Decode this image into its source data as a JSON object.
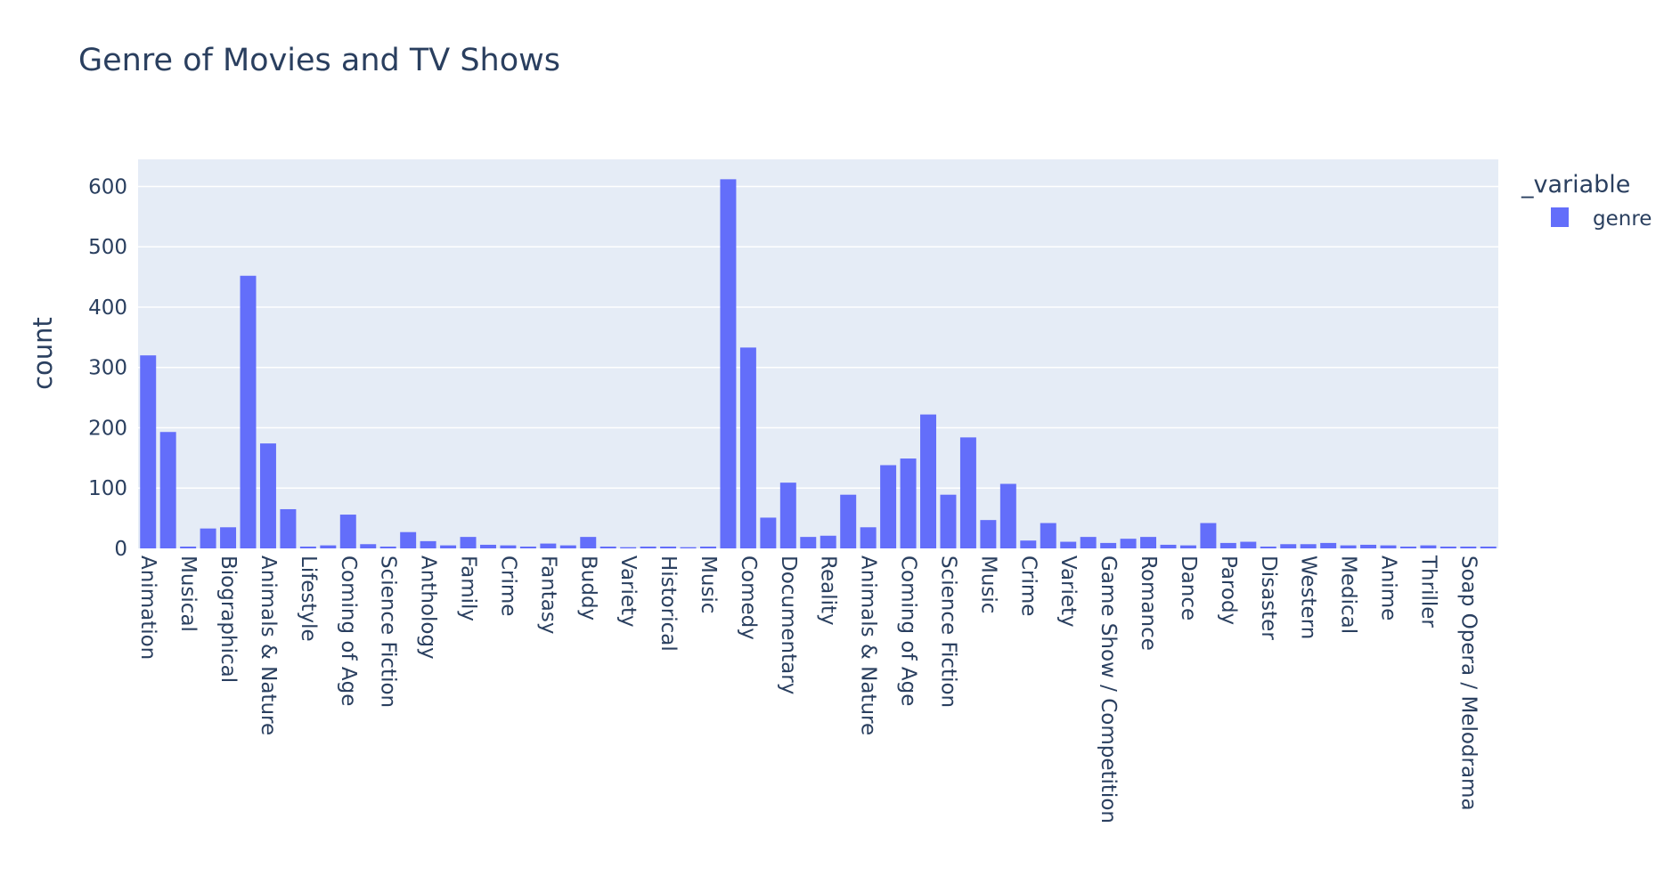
{
  "chart_data": {
    "type": "bar",
    "title": "Genre of Movies and TV Shows",
    "xlabel": "",
    "ylabel": "count",
    "ylim": [
      0,
      645
    ],
    "yticks": [
      0,
      100,
      200,
      300,
      400,
      500,
      600
    ],
    "grid": true,
    "legend": {
      "title": "_variable",
      "position": "top-right"
    },
    "colors": {
      "bar": "#636efa",
      "plot_bg": "#e5ecf6",
      "grid": "#ffffff",
      "text": "#2a3f5f"
    },
    "categories": [
      "Animation",
      "",
      "Musical",
      "",
      "Biographical",
      "",
      "Animals & Nature",
      "",
      "Lifestyle",
      "",
      "Coming of Age",
      "",
      "Science Fiction",
      "",
      "Anthology",
      "",
      "Family",
      "",
      "Crime",
      "",
      "Fantasy",
      "",
      "Buddy",
      "",
      "Variety",
      "",
      "Historical",
      "",
      "Music",
      "",
      "Comedy",
      "",
      "Documentary",
      "",
      "Reality",
      "",
      "Animals & Nature",
      "",
      "Coming of Age",
      "",
      "Science Fiction",
      "",
      "Music",
      "",
      "Crime",
      "",
      "Variety",
      "",
      "Game Show / Competition",
      "",
      "Romance",
      "",
      "Dance",
      "",
      "Parody",
      "",
      "Disaster",
      "",
      "Western",
      "",
      "Medical",
      "",
      "Anime",
      "",
      "Thriller",
      "",
      "Soap Opera / Melodrama",
      ""
    ],
    "series": [
      {
        "name": "genre",
        "values": [
          320,
          193,
          3,
          33,
          35,
          452,
          174,
          65,
          3,
          5,
          56,
          7,
          3,
          27,
          12,
          5,
          19,
          6,
          5,
          3,
          8,
          5,
          19,
          3,
          2,
          3,
          3,
          2,
          3,
          612,
          333,
          51,
          109,
          19,
          21,
          89,
          35,
          138,
          149,
          222,
          89,
          184,
          47,
          107,
          13,
          42,
          11,
          19,
          9,
          16,
          19,
          6,
          5,
          42,
          9,
          11,
          3,
          7,
          7,
          9,
          5,
          6,
          5,
          3,
          5,
          3,
          3,
          3
        ]
      }
    ]
  }
}
